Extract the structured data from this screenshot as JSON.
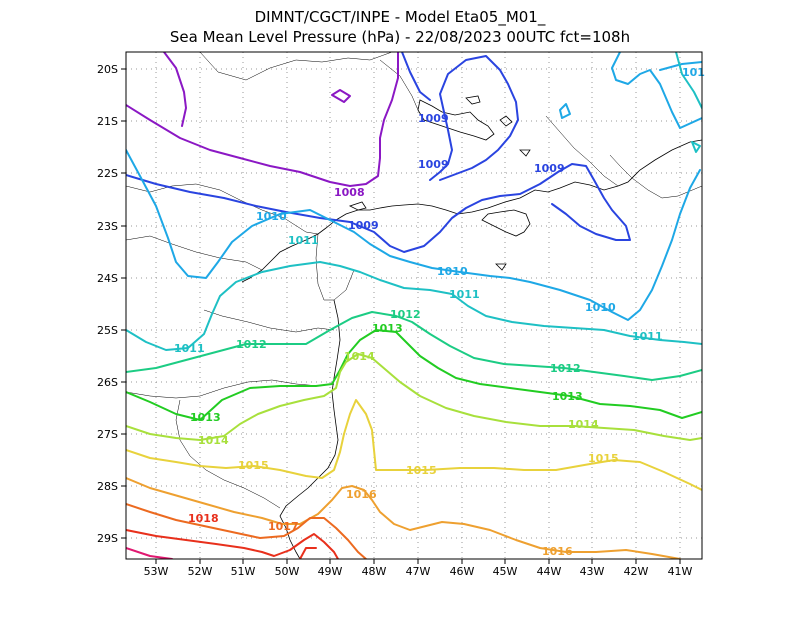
{
  "title": {
    "line1": "DIMNT/CGCT/INPE -  Model Eta05_M01_",
    "line2": "Sea Mean Level Pressure (hPa) - 22/08/2023 00UTC fct=108h"
  },
  "axes": {
    "x_ticks": [
      "53W",
      "52W",
      "51W",
      "50W",
      "49W",
      "48W",
      "47W",
      "46W",
      "45W",
      "44W",
      "43W",
      "42W",
      "41W"
    ],
    "y_ticks": [
      "20S",
      "21S",
      "22S",
      "23S",
      "24S",
      "25S",
      "26S",
      "27S",
      "28S",
      "29S"
    ]
  },
  "colors": {
    "1008": "#8b18c4",
    "1009": "#2a44e0",
    "1010": "#1ea8e6",
    "1011": "#1ec0c4",
    "1012": "#1ccc84",
    "1013": "#22cc22",
    "1014": "#a8e03c",
    "1015": "#e8d23c",
    "1016": "#eea030",
    "1017": "#ec6a20",
    "1018": "#e8301c",
    "1019": "#e01870"
  },
  "isobar_labels": [
    {
      "text": "1008",
      "level": "1008"
    },
    {
      "text": "1009",
      "level": "1009"
    },
    {
      "text": "1009",
      "level": "1009"
    },
    {
      "text": "1009",
      "level": "1009"
    },
    {
      "text": "1009",
      "level": "1009"
    },
    {
      "text": "1010",
      "level": "1010"
    },
    {
      "text": "1010",
      "level": "1010"
    },
    {
      "text": "1010",
      "level": "1010"
    },
    {
      "text": "101",
      "level": "1010"
    },
    {
      "text": "1011",
      "level": "1011"
    },
    {
      "text": "1011",
      "level": "1011"
    },
    {
      "text": "1011",
      "level": "1011"
    },
    {
      "text": "1011",
      "level": "1011"
    },
    {
      "text": "1012",
      "level": "1012"
    },
    {
      "text": "1012",
      "level": "1012"
    },
    {
      "text": "1012",
      "level": "1012"
    },
    {
      "text": "1013",
      "level": "1013"
    },
    {
      "text": "1013",
      "level": "1013"
    },
    {
      "text": "1013",
      "level": "1013"
    },
    {
      "text": "1014",
      "level": "1014"
    },
    {
      "text": "1014",
      "level": "1014"
    },
    {
      "text": "1014",
      "level": "1014"
    },
    {
      "text": "1015",
      "level": "1015"
    },
    {
      "text": "1015",
      "level": "1015"
    },
    {
      "text": "1015",
      "level": "1015"
    },
    {
      "text": "1016",
      "level": "1016"
    },
    {
      "text": "1016",
      "level": "1016"
    },
    {
      "text": "1017",
      "level": "1017"
    },
    {
      "text": "1018",
      "level": "1018"
    }
  ]
}
